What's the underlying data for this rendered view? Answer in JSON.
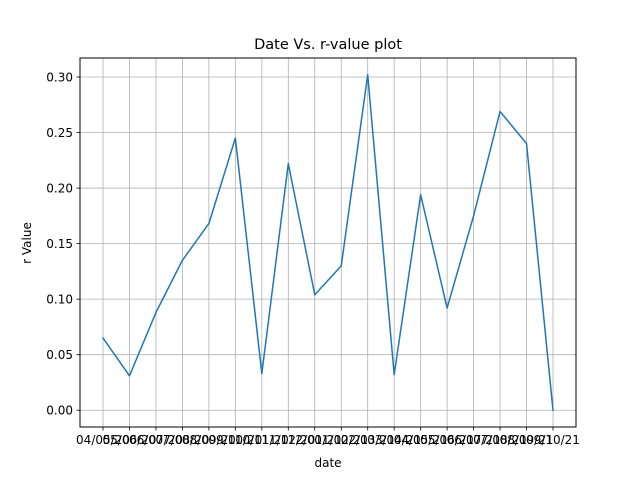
{
  "chart_data": {
    "type": "line",
    "title": "Date Vs. r-value plot",
    "xlabel": "date",
    "ylabel": "r Value",
    "categories": [
      "04/05/20",
      "05/06/20",
      "06/07/20",
      "07/08/20",
      "08/09/20",
      "09/10/20",
      "10/11/20",
      "11/12/20",
      "12/01/21",
      "01/02/21",
      "02/03/21",
      "03/04/21",
      "04/05/21",
      "05/06/21",
      "06/07/21",
      "07/08/21",
      "08/09/21",
      "09/10/21"
    ],
    "series": [
      {
        "color": "#1f77b4",
        "values": [
          0.065,
          0.031,
          0.088,
          0.135,
          0.168,
          0.245,
          0.033,
          0.222,
          0.104,
          0.13,
          0.302,
          0.032,
          0.194,
          0.092,
          0.175,
          0.269,
          0.24,
          0.0
        ]
      }
    ],
    "ylim": [
      -0.0151,
      0.3171
    ],
    "yticks": [
      0.0,
      0.05,
      0.1,
      0.15,
      0.2,
      0.25,
      0.3
    ],
    "ytick_labels": [
      "0.00",
      "0.05",
      "0.10",
      "0.15",
      "0.20",
      "0.25",
      "0.30"
    ],
    "grid": true
  }
}
